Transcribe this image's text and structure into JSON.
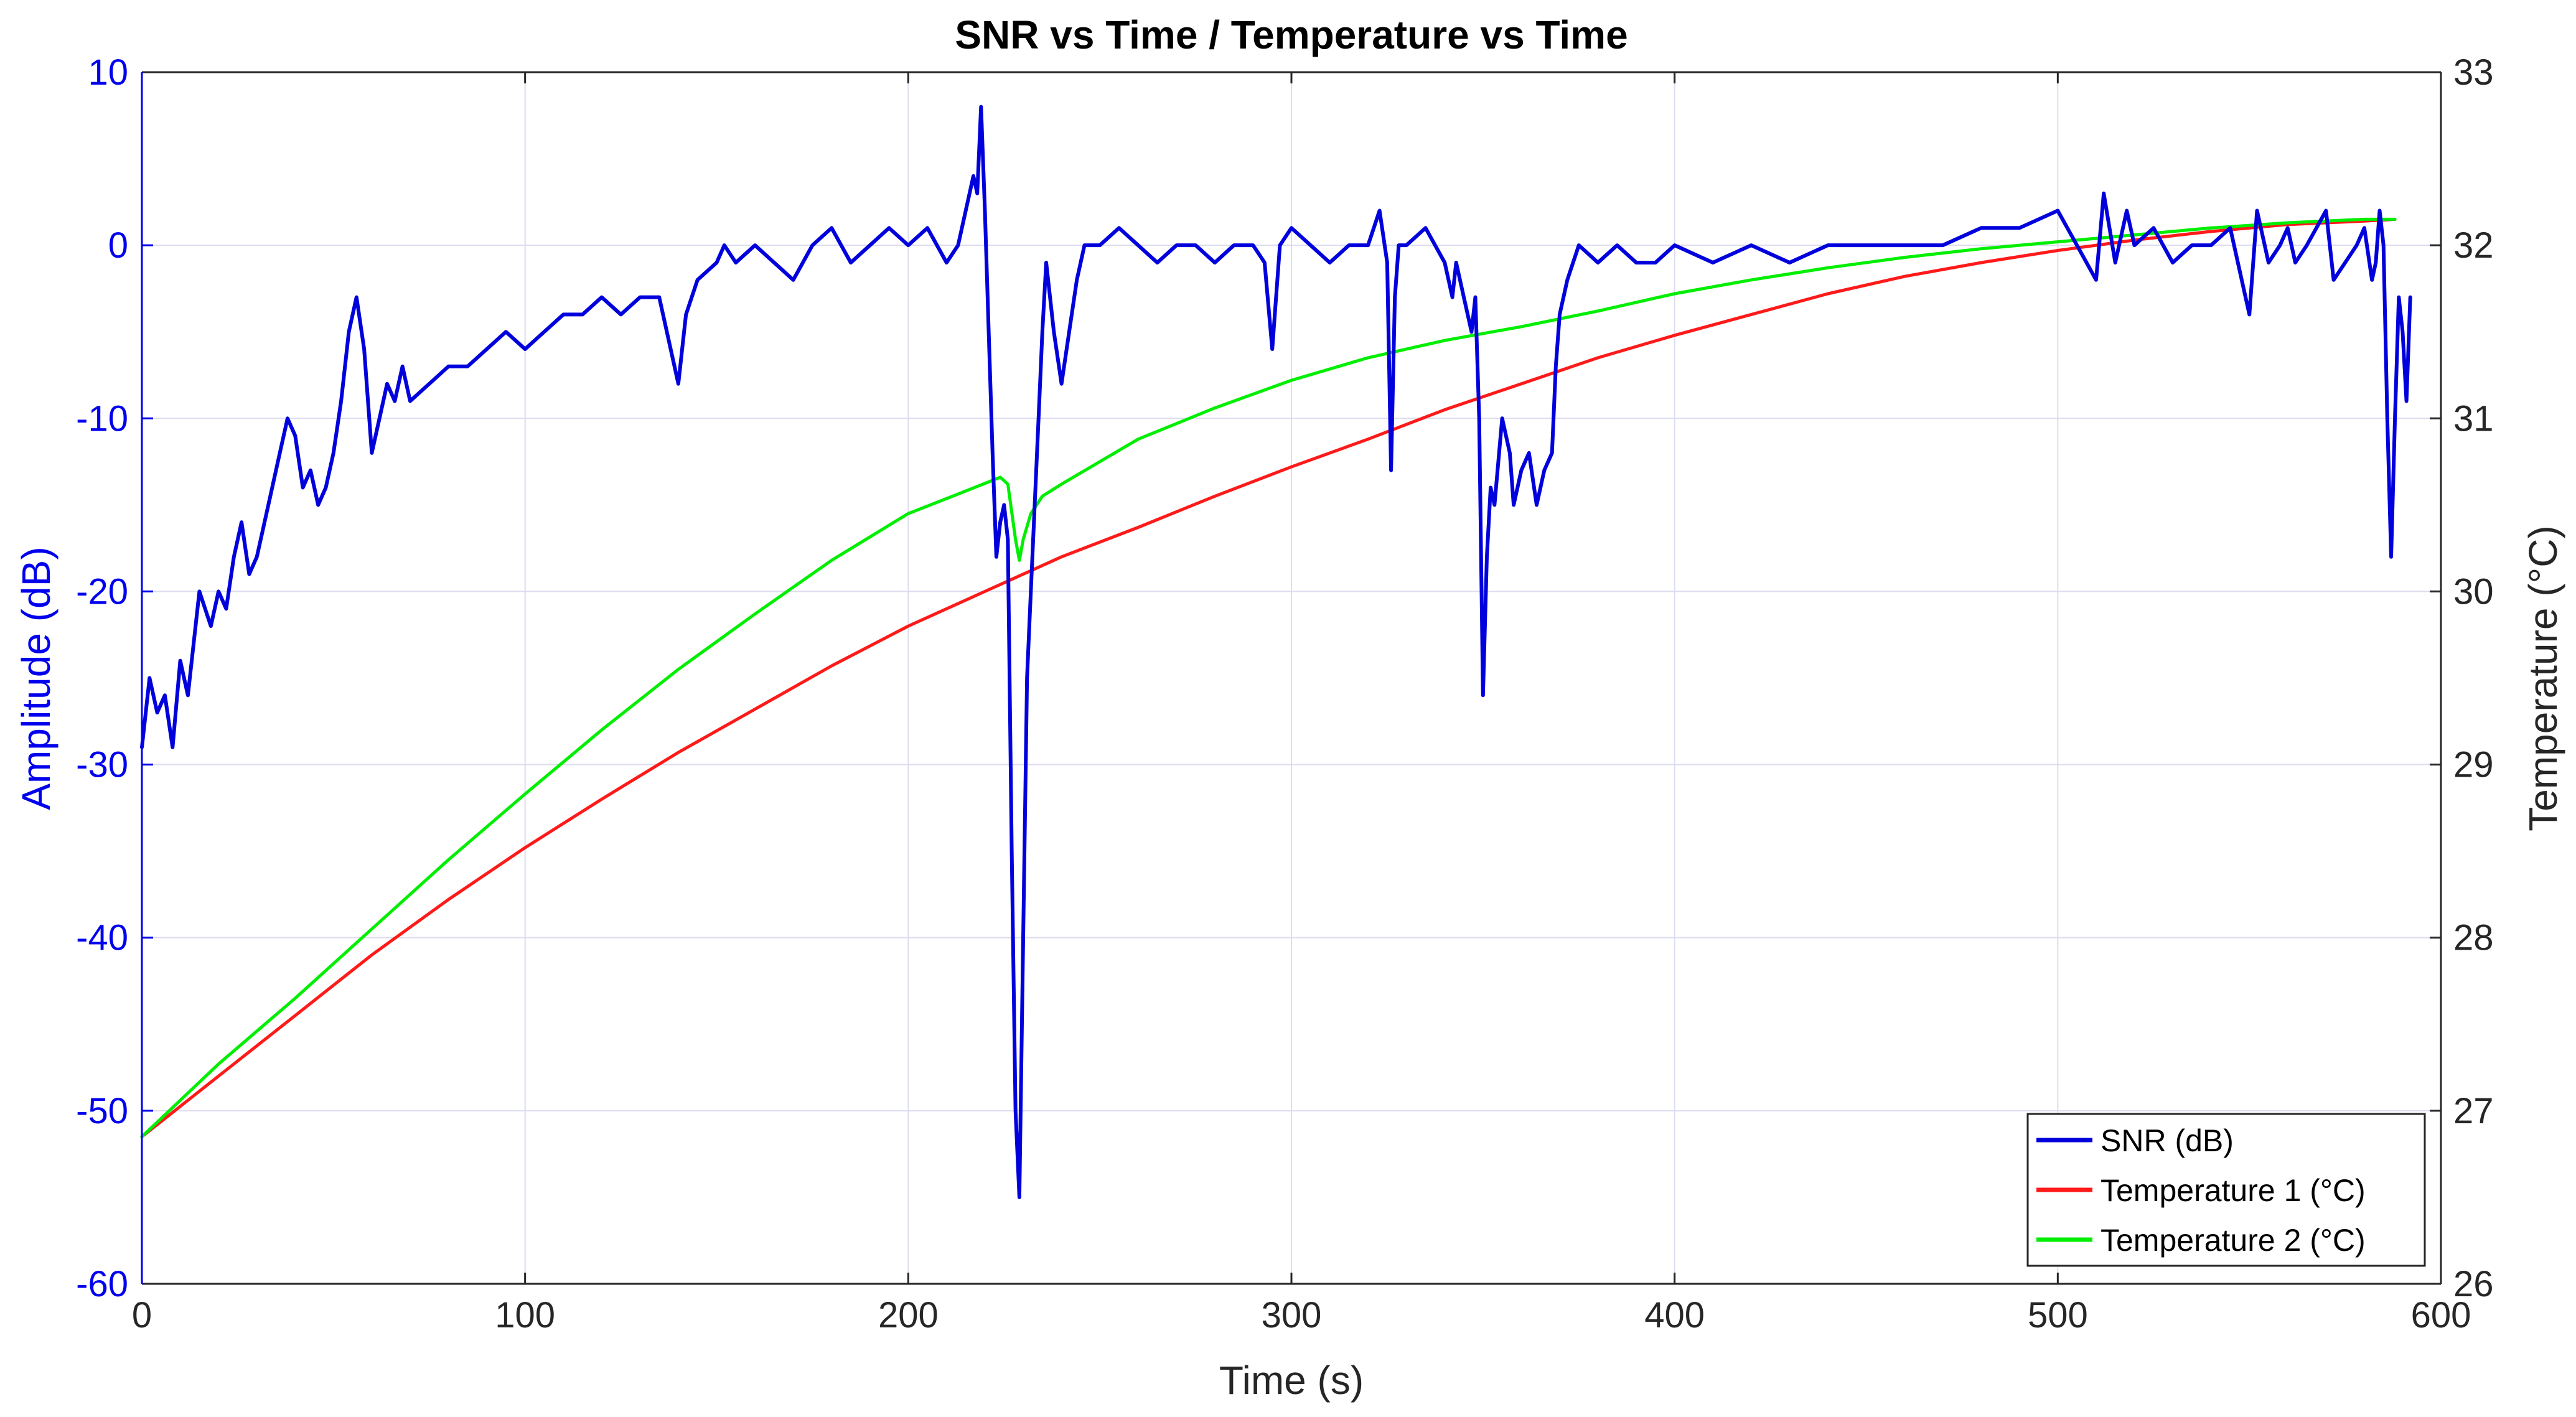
{
  "chart_data": {
    "type": "line",
    "title": "SNR vs Time / Temperature vs Time",
    "xlabel": "Time (s)",
    "ylabel_left": "Amplitude (dB)",
    "ylabel_right": "Temperature (°C)",
    "xlim": [
      0,
      600
    ],
    "ylim_left": [
      -60,
      10
    ],
    "ylim_right": [
      26,
      33
    ],
    "xticks": [
      "0",
      "100",
      "200",
      "300",
      "400",
      "500",
      "600"
    ],
    "yticks_left": [
      "-60",
      "-50",
      "-40",
      "-30",
      "-20",
      "-10",
      "0",
      "10"
    ],
    "yticks_right": [
      "26",
      "27",
      "28",
      "29",
      "30",
      "31",
      "32",
      "33"
    ],
    "grid": true,
    "legend_position": "bottom-right",
    "colors": {
      "snr": "#0000dd",
      "temp1": "#ff1a1a",
      "temp2": "#00ee00",
      "left_axis": "#0000ee",
      "axes": "#262626",
      "grid": "#dcdcf0"
    },
    "series": [
      {
        "name": "SNR (dB)",
        "axis": "left",
        "x": [
          0,
          2,
          4,
          6,
          8,
          10,
          12,
          15,
          18,
          20,
          22,
          24,
          26,
          28,
          30,
          33,
          36,
          38,
          40,
          42,
          44,
          46,
          48,
          50,
          52,
          54,
          56,
          58,
          60,
          62,
          64,
          66,
          68,
          70,
          75,
          80,
          85,
          90,
          95,
          100,
          105,
          110,
          115,
          120,
          125,
          130,
          135,
          138,
          140,
          142,
          145,
          150,
          152,
          155,
          160,
          165,
          170,
          175,
          180,
          185,
          190,
          195,
          200,
          205,
          210,
          213,
          215,
          217,
          218,
          219,
          220,
          221,
          222,
          223,
          224,
          225,
          226,
          227,
          228,
          229,
          230,
          231,
          232,
          233,
          234,
          235,
          236,
          238,
          240,
          242,
          244,
          246,
          250,
          255,
          260,
          265,
          270,
          275,
          280,
          285,
          290,
          293,
          295,
          297,
          300,
          305,
          310,
          315,
          320,
          323,
          325,
          326,
          327,
          328,
          330,
          335,
          340,
          342,
          343,
          345,
          347,
          348,
          349,
          350,
          351,
          352,
          353,
          355,
          357,
          358,
          360,
          362,
          364,
          366,
          368,
          369,
          370,
          372,
          375,
          380,
          385,
          390,
          395,
          400,
          410,
          420,
          430,
          440,
          450,
          460,
          470,
          480,
          490,
          500,
          505,
          510,
          512,
          515,
          518,
          520,
          525,
          530,
          535,
          540,
          545,
          548,
          550,
          552,
          555,
          558,
          560,
          562,
          565,
          570,
          572,
          575,
          578,
          580,
          582,
          583,
          584,
          585,
          586,
          587,
          588,
          589,
          590,
          591,
          592
        ],
        "y": [
          -29,
          -25,
          -27,
          -26,
          -29,
          -24,
          -26,
          -20,
          -22,
          -20,
          -21,
          -18,
          -16,
          -19,
          -18,
          -15,
          -12,
          -10,
          -11,
          -14,
          -13,
          -15,
          -14,
          -12,
          -9,
          -5,
          -3,
          -6,
          -12,
          -10,
          -8,
          -9,
          -7,
          -9,
          -8,
          -7,
          -7,
          -6,
          -5,
          -6,
          -5,
          -4,
          -4,
          -3,
          -4,
          -3,
          -3,
          -6,
          -8,
          -4,
          -2,
          -1,
          0,
          -1,
          0,
          -1,
          -2,
          0,
          1,
          -1,
          0,
          1,
          0,
          1,
          -1,
          0,
          2,
          4,
          3,
          8,
          2,
          -5,
          -12,
          -18,
          -16,
          -15,
          -17,
          -35,
          -50,
          -55,
          -40,
          -25,
          -20,
          -15,
          -10,
          -5,
          -1,
          -5,
          -8,
          -5,
          -2,
          0,
          0,
          1,
          0,
          -1,
          0,
          0,
          -1,
          0,
          0,
          -1,
          -6,
          0,
          1,
          0,
          -1,
          0,
          0,
          2,
          -1,
          -13,
          -3,
          0,
          0,
          1,
          -1,
          -3,
          -1,
          -3,
          -5,
          -3,
          -10,
          -26,
          -18,
          -14,
          -15,
          -10,
          -12,
          -15,
          -13,
          -12,
          -15,
          -13,
          -12,
          -7,
          -4,
          -2,
          0,
          -1,
          0,
          -1,
          -1,
          0,
          -1,
          0,
          -1,
          0,
          0,
          0,
          0,
          1,
          1,
          2,
          0,
          -2,
          3,
          -1,
          2,
          0,
          1,
          -1,
          0,
          0,
          1,
          -2,
          -4,
          2,
          -1,
          0,
          1,
          -1,
          0,
          2,
          -2,
          -1,
          0,
          1,
          -2,
          -1,
          2,
          0,
          -10,
          -18,
          -10,
          -3,
          -5,
          -9,
          -3
        ]
      },
      {
        "name": "Temperature 1 (°C)",
        "axis": "right",
        "x": [
          0,
          20,
          40,
          60,
          80,
          100,
          120,
          140,
          160,
          180,
          200,
          220,
          240,
          260,
          280,
          300,
          320,
          340,
          360,
          380,
          400,
          420,
          440,
          460,
          480,
          500,
          520,
          540,
          560,
          580,
          588
        ],
        "y": [
          26.85,
          27.2,
          27.55,
          27.9,
          28.22,
          28.52,
          28.8,
          29.07,
          29.32,
          29.57,
          29.8,
          30.0,
          30.2,
          30.37,
          30.55,
          30.72,
          30.88,
          31.05,
          31.2,
          31.35,
          31.48,
          31.6,
          31.72,
          31.82,
          31.9,
          31.97,
          32.03,
          32.08,
          32.12,
          32.14,
          32.15
        ]
      },
      {
        "name": "Temperature 2 (°C)",
        "axis": "right",
        "x": [
          0,
          20,
          40,
          60,
          80,
          100,
          120,
          140,
          160,
          180,
          200,
          215,
          224,
          226,
          228,
          229,
          230,
          232,
          235,
          240,
          260,
          280,
          300,
          320,
          340,
          360,
          380,
          400,
          420,
          440,
          460,
          480,
          500,
          520,
          540,
          560,
          580,
          588
        ],
        "y": [
          26.85,
          27.27,
          27.65,
          28.05,
          28.45,
          28.83,
          29.2,
          29.55,
          29.87,
          30.18,
          30.45,
          30.58,
          30.66,
          30.62,
          30.3,
          30.18,
          30.3,
          30.45,
          30.55,
          30.62,
          30.88,
          31.06,
          31.22,
          31.35,
          31.45,
          31.53,
          31.62,
          31.72,
          31.8,
          31.87,
          31.93,
          31.98,
          32.02,
          32.06,
          32.1,
          32.13,
          32.15,
          32.15
        ]
      }
    ]
  }
}
